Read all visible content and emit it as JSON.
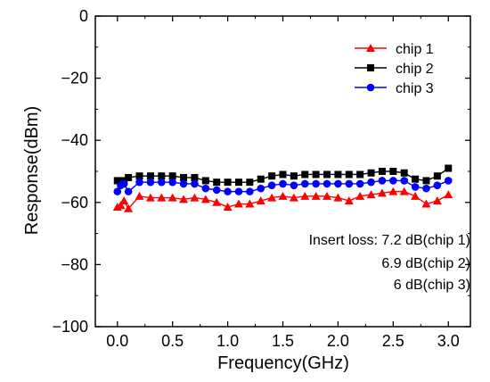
{
  "chart_data": {
    "type": "line",
    "xlabel": "Frequency(GHz)",
    "ylabel": "Response(dBm)",
    "xlim": [
      -0.2,
      3.2
    ],
    "ylim": [
      -100,
      0
    ],
    "xticks": [
      0.0,
      0.5,
      1.0,
      1.5,
      2.0,
      2.5,
      3.0
    ],
    "xtick_labels": [
      "0.0",
      "0.5",
      "1.0",
      "1.5",
      "2.0",
      "2.5",
      "3.0"
    ],
    "yticks": [
      0,
      -20,
      -40,
      -60,
      -80,
      -100
    ],
    "ytick_labels": [
      "0",
      "−20",
      "−40",
      "−60",
      "−80",
      "−100"
    ],
    "grid": false,
    "legend_position": "top-right",
    "x": [
      0.0,
      0.03,
      0.06,
      0.1,
      0.2,
      0.3,
      0.4,
      0.5,
      0.6,
      0.7,
      0.8,
      0.9,
      1.0,
      1.1,
      1.2,
      1.3,
      1.4,
      1.5,
      1.6,
      1.7,
      1.8,
      1.9,
      2.0,
      2.1,
      2.2,
      2.3,
      2.4,
      2.5,
      2.6,
      2.7,
      2.8,
      2.9,
      3.0
    ],
    "series": [
      {
        "name": "chip 1",
        "color": "#ff0000",
        "marker": "triangle",
        "values": [
          -61.5,
          -61.0,
          -59.5,
          -62.0,
          -58.0,
          -58.5,
          -58.5,
          -58.5,
          -59.0,
          -58.5,
          -59.0,
          -60.0,
          -61.5,
          -60.5,
          -60.5,
          -59.5,
          -58.5,
          -58.0,
          -58.5,
          -58.0,
          -58.0,
          -58.0,
          -58.5,
          -59.5,
          -58.0,
          -57.5,
          -57.0,
          -56.5,
          -56.5,
          -58.0,
          -60.5,
          -59.5,
          -57.5
        ]
      },
      {
        "name": "chip 2",
        "color": "#000000",
        "marker": "square",
        "values": [
          -53.0,
          -53.5,
          -53.0,
          -52.0,
          -51.5,
          -51.5,
          -51.5,
          -51.5,
          -52.0,
          -52.0,
          -53.0,
          -53.5,
          -53.5,
          -53.5,
          -53.5,
          -52.5,
          -51.5,
          -51.0,
          -51.5,
          -51.0,
          -51.0,
          -51.0,
          -51.0,
          -51.0,
          -51.0,
          -50.5,
          -50.0,
          -50.0,
          -50.5,
          -52.5,
          -53.0,
          -51.5,
          -49.0
        ]
      },
      {
        "name": "chip 3",
        "color": "#0000ff",
        "marker": "circle",
        "values": [
          -56.5,
          -54.5,
          -54.0,
          -56.5,
          -53.5,
          -53.5,
          -53.5,
          -53.5,
          -54.0,
          -54.0,
          -55.5,
          -56.0,
          -56.5,
          -56.5,
          -56.5,
          -55.5,
          -54.5,
          -54.0,
          -54.5,
          -54.0,
          -54.0,
          -54.0,
          -54.0,
          -54.0,
          -54.0,
          -53.5,
          -53.0,
          -53.0,
          -53.0,
          -55.0,
          -55.5,
          -54.5,
          -53.0
        ]
      }
    ],
    "annotations": [
      "Insert loss: 7.2 dB(chip 1)",
      "6.9 dB(chip 2)",
      "6 dB(chip 3)"
    ]
  }
}
